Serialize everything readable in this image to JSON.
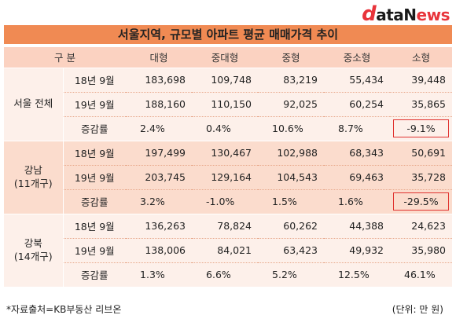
{
  "logo": {
    "d": "d",
    "ata": "ata",
    "n": "N",
    "ews": "ews"
  },
  "title": "서울지역, 규모별 아파트 평균 매매가격 추이",
  "headers": [
    "구  분",
    "대형",
    "중대형",
    "중형",
    "중소형",
    "소형"
  ],
  "groups": [
    {
      "region": "서울 전체",
      "rows": [
        {
          "label": "18년 9월",
          "values": [
            "183,698",
            "109,748",
            "83,219",
            "55,434",
            "39,448"
          ]
        },
        {
          "label": "19년 9월",
          "values": [
            "188,160",
            "110,150",
            "92,025",
            "60,254",
            "35,865"
          ]
        },
        {
          "label": "증감률",
          "values": [
            "2.4%",
            "0.4%",
            "10.6%",
            "8.7%",
            "-9.1%"
          ]
        }
      ]
    },
    {
      "region_line1": "강남",
      "region_line2": "(11개구)",
      "rows": [
        {
          "label": "18년 9월",
          "values": [
            "197,499",
            "130,467",
            "102,988",
            "68,343",
            "50,691"
          ]
        },
        {
          "label": "19년 9월",
          "values": [
            "203,745",
            "129,164",
            "104,543",
            "69,463",
            "35,728"
          ]
        },
        {
          "label": "증감률",
          "values": [
            "3.2%",
            "-1.0%",
            "1.5%",
            "1.6%",
            "-29.5%"
          ]
        }
      ]
    },
    {
      "region_line1": "강북",
      "region_line2": "(14개구)",
      "rows": [
        {
          "label": "18년 9월",
          "values": [
            "136,263",
            "78,824",
            "60,262",
            "44,388",
            "24,623"
          ]
        },
        {
          "label": "19년 9월",
          "values": [
            "138,006",
            "84,021",
            "63,423",
            "49,932",
            "35,980"
          ]
        },
        {
          "label": "증감률",
          "values": [
            "1.3%",
            "6.6%",
            "5.2%",
            "12.5%",
            "46.1%"
          ]
        }
      ]
    }
  ],
  "footer": {
    "source": "*자료출처=KB부동산 리브온",
    "unit": "(단위: 만 원)"
  }
}
